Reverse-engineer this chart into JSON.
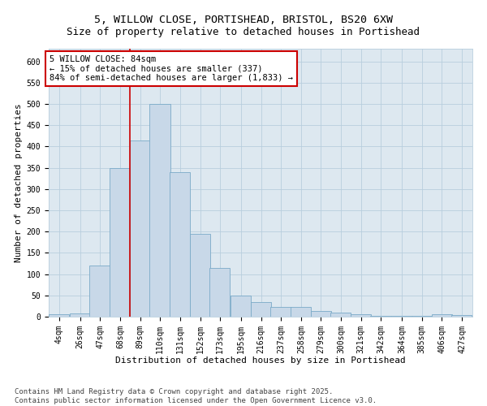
{
  "title_line1": "5, WILLOW CLOSE, PORTISHEAD, BRISTOL, BS20 6XW",
  "title_line2": "Size of property relative to detached houses in Portishead",
  "xlabel": "Distribution of detached houses by size in Portishead",
  "ylabel": "Number of detached properties",
  "bins": [
    4,
    26,
    47,
    68,
    89,
    110,
    131,
    152,
    173,
    195,
    216,
    237,
    258,
    279,
    300,
    321,
    342,
    364,
    385,
    406,
    427
  ],
  "bar_values": [
    5,
    8,
    120,
    350,
    415,
    500,
    340,
    195,
    115,
    50,
    35,
    23,
    22,
    14,
    10,
    6,
    2,
    2,
    1,
    5,
    3
  ],
  "bar_color": "#c8d8e8",
  "bar_edgecolor": "#7aaac8",
  "grid_color": "#b8cede",
  "background_color": "#dde8f0",
  "red_line_x": 89,
  "annotation_title": "5 WILLOW CLOSE: 84sqm",
  "annotation_line2": "← 15% of detached houses are smaller (337)",
  "annotation_line3": "84% of semi-detached houses are larger (1,833) →",
  "annotation_box_color": "#cc0000",
  "ylim": [
    0,
    630
  ],
  "yticks": [
    0,
    50,
    100,
    150,
    200,
    250,
    300,
    350,
    400,
    450,
    500,
    550,
    600
  ],
  "footer_line1": "Contains HM Land Registry data © Crown copyright and database right 2025.",
  "footer_line2": "Contains public sector information licensed under the Open Government Licence v3.0.",
  "title_fontsize": 9.5,
  "axis_label_fontsize": 8,
  "tick_fontsize": 7,
  "annotation_fontsize": 7.5,
  "footer_fontsize": 6.5
}
